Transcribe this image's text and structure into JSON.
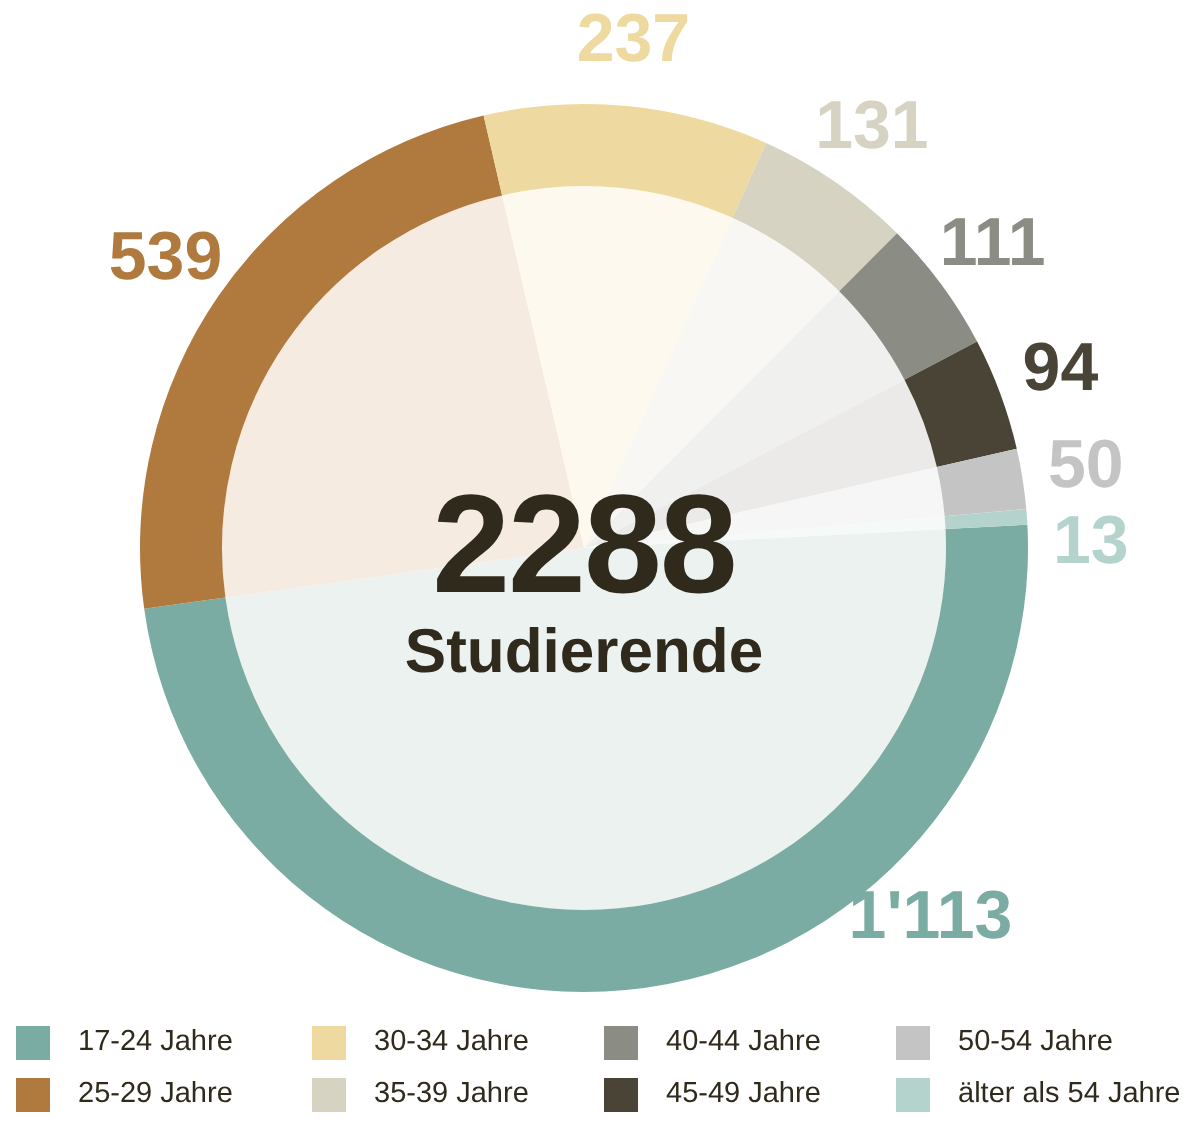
{
  "chart_data": {
    "type": "donut",
    "title": "2288",
    "subtitle": "Studierende",
    "categories": [
      "17-24 Jahre",
      "25-29 Jahre",
      "30-34 Jahre",
      "35-39 Jahre",
      "40-44 Jahre",
      "45-49 Jahre",
      "50-54 Jahre",
      "älter als 54 Jahre"
    ],
    "series": [
      {
        "values": [
          1113,
          539,
          237,
          131,
          111,
          94,
          50,
          13
        ],
        "value_labels": [
          "1'113",
          "539",
          "237",
          "131",
          "111",
          "94",
          "50",
          "13"
        ],
        "colors": [
          "#7aaca3",
          "#b07a3e",
          "#eed9a0",
          "#d6d3c3",
          "#8b8d84",
          "#4a4436",
          "#c5c4c4",
          "#b5d3cd"
        ]
      },
      {
        "values": [
          1113,
          539,
          237,
          131,
          111,
          94,
          50,
          13
        ],
        "colors": [
          "#ecf2f0",
          "#f5ebe1",
          "#fdf9ef",
          "#f8f7f4",
          "#f0f0ef",
          "#ebeae8",
          "#f6f6f6",
          "#f5f9f8"
        ]
      }
    ],
    "legend": "bottom"
  }
}
